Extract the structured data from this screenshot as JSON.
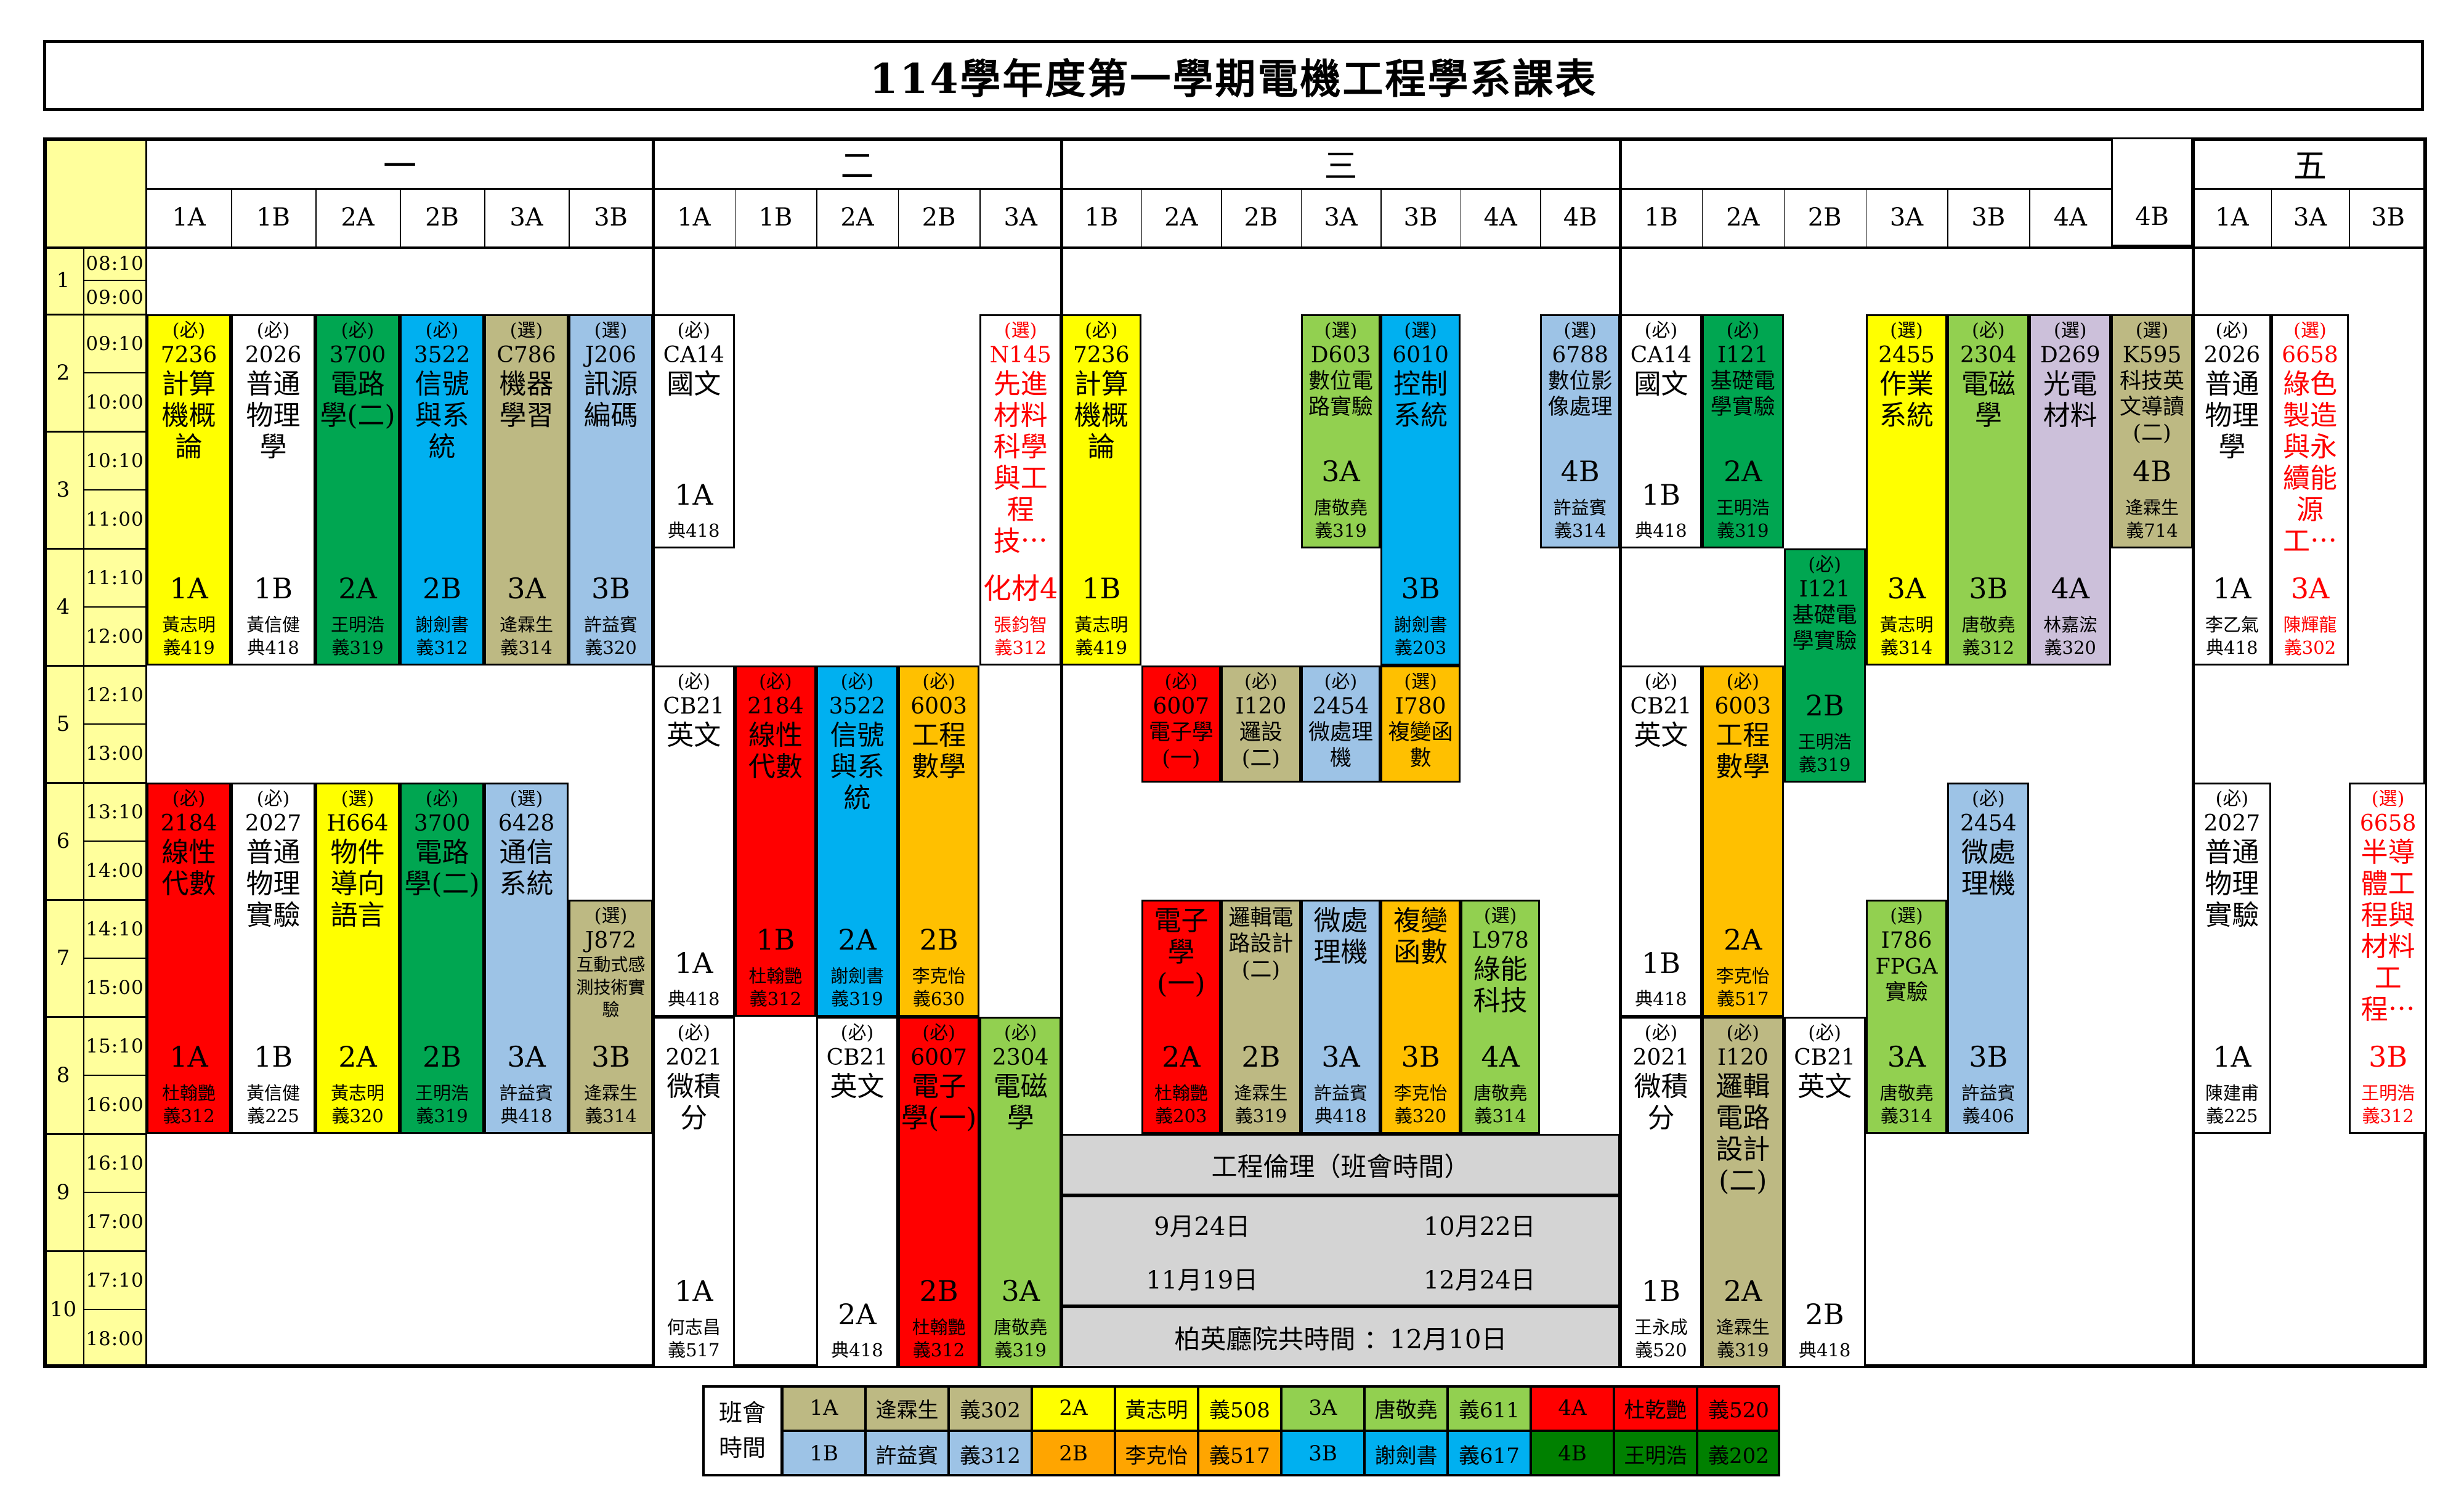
{
  "title": "114學年度第一學期電機工程學系課表",
  "palette": {
    "yellow": "#FFFF00",
    "white": "#FFFFFF",
    "green": "#00A651",
    "cyan": "#00B0F0",
    "tan": "#BDB983",
    "lightblue": "#9DC3E6",
    "red": "#FF0000",
    "lightgreen": "#92D050",
    "orange": "#FFC000",
    "orange2": "#FFA500",
    "lavender": "#CCC0DA",
    "gray": "#D4D4D4",
    "darkgreen": "#008000",
    "timecol": "#FFFF9C",
    "redtext": "#FF0000"
  },
  "days": [
    {
      "label": "一",
      "cols": [
        "1A",
        "1B",
        "2A",
        "2B",
        "3A",
        "3B"
      ]
    },
    {
      "label": "二",
      "cols": [
        "1A",
        "1B",
        "2A",
        "2B",
        "3A"
      ]
    },
    {
      "label": "三",
      "cols": [
        "1B",
        "2A",
        "2B",
        "3A",
        "3B",
        "4A",
        "4B"
      ]
    },
    {
      "label": "",
      "cols": [
        "1B",
        "2A",
        "2B",
        "3A",
        "3B",
        "4A",
        "4B"
      ],
      "merged_last": true
    },
    {
      "label": "五",
      "cols": [
        "1A",
        "3A",
        "3B"
      ]
    }
  ],
  "periods": [
    {
      "num": "1",
      "start": "08:10",
      "end": "09:00"
    },
    {
      "num": "2",
      "start": "09:10",
      "end": "10:00"
    },
    {
      "num": "3",
      "start": "10:10",
      "end": "11:00"
    },
    {
      "num": "4",
      "start": "11:10",
      "end": "12:00"
    },
    {
      "num": "5",
      "start": "12:10",
      "end": "13:00"
    },
    {
      "num": "6",
      "start": "13:10",
      "end": "14:00"
    },
    {
      "num": "7",
      "start": "14:10",
      "end": "15:00"
    },
    {
      "num": "8",
      "start": "15:10",
      "end": "16:00"
    },
    {
      "num": "9",
      "start": "16:10",
      "end": "17:00"
    },
    {
      "num": "10",
      "start": "17:10",
      "end": "18:00"
    }
  ],
  "courses": [
    {
      "d": 0,
      "c": 0,
      "p": [
        2,
        4
      ],
      "bg": "yellow",
      "meta": "(必)",
      "code": "7236",
      "name": "計算機概論",
      "size": "lg",
      "cls": "1A",
      "teacher": "黃志明",
      "room": "義419"
    },
    {
      "d": 0,
      "c": 1,
      "p": [
        2,
        4
      ],
      "bg": "white",
      "meta": "(必)",
      "code": "2026",
      "name": "普通物理學",
      "size": "lg",
      "cls": "1B",
      "teacher": "黃信健",
      "room": "典418"
    },
    {
      "d": 0,
      "c": 2,
      "p": [
        2,
        4
      ],
      "bg": "green",
      "meta": "(必)",
      "code": "3700",
      "name": "電路學(二)",
      "size": "lg",
      "cls": "2A",
      "teacher": "王明浩",
      "room": "義319"
    },
    {
      "d": 0,
      "c": 3,
      "p": [
        2,
        4
      ],
      "bg": "cyan",
      "meta": "(必)",
      "code": "3522",
      "name": "信號與系統",
      "size": "lg",
      "cls": "2B",
      "teacher": "謝劍書",
      "room": "義312"
    },
    {
      "d": 0,
      "c": 4,
      "p": [
        2,
        4
      ],
      "bg": "tan",
      "meta": "(選)",
      "code": "C786",
      "name": "機器學習",
      "size": "lg",
      "cls": "3A",
      "teacher": "逄霖生",
      "room": "義314"
    },
    {
      "d": 0,
      "c": 5,
      "p": [
        2,
        4
      ],
      "bg": "lightblue",
      "meta": "(選)",
      "code": "J206",
      "name": "訊源編碼",
      "size": "lg",
      "cls": "3B",
      "teacher": "許益賓",
      "room": "義320"
    },
    {
      "d": 0,
      "c": 0,
      "p": [
        6,
        8
      ],
      "bg": "red",
      "meta": "(必)",
      "code": "2184",
      "name": "線性代數",
      "size": "lg",
      "cls": "1A",
      "teacher": "杜翰艷",
      "room": "義312"
    },
    {
      "d": 0,
      "c": 1,
      "p": [
        6,
        8
      ],
      "bg": "white",
      "meta": "(必)",
      "code": "2027",
      "name": "普通物理實驗",
      "size": "lg",
      "cls": "1B",
      "teacher": "黃信健",
      "room": "義225"
    },
    {
      "d": 0,
      "c": 2,
      "p": [
        6,
        8
      ],
      "bg": "yellow",
      "meta": "(選)",
      "code": "H664",
      "name": "物件導向語言",
      "size": "lg",
      "cls": "2A",
      "teacher": "黃志明",
      "room": "義320"
    },
    {
      "d": 0,
      "c": 3,
      "p": [
        6,
        8
      ],
      "bg": "green",
      "meta": "(必)",
      "code": "3700",
      "name": "電路學(二)",
      "size": "lg",
      "cls": "2B",
      "teacher": "王明浩",
      "room": "義319"
    },
    {
      "d": 0,
      "c": 4,
      "p": [
        6,
        8
      ],
      "bg": "lightblue",
      "meta": "(選)",
      "code": "6428",
      "name": "通信系統",
      "size": "lg",
      "cls": "3A",
      "teacher": "許益賓",
      "room": "典418"
    },
    {
      "d": 0,
      "c": 5,
      "p": [
        7,
        8
      ],
      "bg": "tan",
      "meta": "(選)",
      "code": "J872",
      "name": "互動式感測技術實驗",
      "size": "xs",
      "cls": "3B",
      "teacher": "逄霖生",
      "room": "義314"
    },
    {
      "d": 1,
      "c": 0,
      "p": [
        2,
        3
      ],
      "bg": "white",
      "meta": "(必)",
      "code": "CA14",
      "name": "國文",
      "size": "lg",
      "cls": "1A",
      "room": "典418"
    },
    {
      "d": 1,
      "c": 4,
      "p": [
        2,
        4
      ],
      "bg": "white",
      "red": true,
      "meta": "(選)",
      "code": "N145",
      "name": "先進材料科學與工程技⋯",
      "size": "lg",
      "cls": "化材4",
      "teacher": "張鈞智",
      "room": "義312"
    },
    {
      "d": 1,
      "c": 0,
      "p": [
        5,
        7
      ],
      "bg": "white",
      "meta": "(必)",
      "code": "CB21",
      "name": "英文",
      "size": "lg",
      "cls": "1A",
      "room": "典418"
    },
    {
      "d": 1,
      "c": 1,
      "p": [
        5,
        7
      ],
      "bg": "red",
      "meta": "(必)",
      "code": "2184",
      "name": "線性代數",
      "size": "lg",
      "cls": "1B",
      "teacher": "杜翰艷",
      "room": "義312"
    },
    {
      "d": 1,
      "c": 2,
      "p": [
        5,
        7
      ],
      "bg": "cyan",
      "meta": "(必)",
      "code": "3522",
      "name": "信號與系統",
      "size": "lg",
      "cls": "2A",
      "teacher": "謝劍書",
      "room": "義319"
    },
    {
      "d": 1,
      "c": 3,
      "p": [
        5,
        7
      ],
      "bg": "orange",
      "meta": "(必)",
      "code": "6003",
      "name": "工程數學",
      "size": "lg",
      "cls": "2B",
      "teacher": "李克怡",
      "room": "義630"
    },
    {
      "d": 1,
      "c": 0,
      "p": [
        8,
        10
      ],
      "bg": "white",
      "meta": "(必)",
      "code": "2021",
      "name": "微積分",
      "size": "lg",
      "cls": "1A",
      "teacher": "何志昌",
      "room": "義517"
    },
    {
      "d": 1,
      "c": 2,
      "p": [
        8,
        10
      ],
      "bg": "white",
      "meta": "(必)",
      "code": "CB21",
      "name": "英文",
      "size": "lg",
      "cls": "2A",
      "room": "典418"
    },
    {
      "d": 1,
      "c": 3,
      "p": [
        8,
        10
      ],
      "bg": "red",
      "meta": "(必)",
      "code": "6007",
      "name": "電子學(一)",
      "size": "lg",
      "cls": "2B",
      "teacher": "杜翰艷",
      "room": "義312"
    },
    {
      "d": 1,
      "c": 4,
      "p": [
        8,
        10
      ],
      "bg": "lightgreen",
      "meta": "(必)",
      "code": "2304",
      "name": "電磁學",
      "size": "lg",
      "cls": "3A",
      "teacher": "唐敬堯",
      "room": "義319"
    },
    {
      "d": 2,
      "c": 0,
      "p": [
        2,
        4
      ],
      "bg": "yellow",
      "meta": "(必)",
      "code": "7236",
      "name": "計算機概論",
      "size": "lg",
      "cls": "1B",
      "teacher": "黃志明",
      "room": "義419"
    },
    {
      "d": 2,
      "c": 3,
      "p": [
        2,
        3
      ],
      "bg": "lightgreen",
      "meta": "(選)",
      "code": "D603",
      "name": "數位電路實驗",
      "size": "md",
      "cls": "3A",
      "teacher": "唐敬堯",
      "room": "義319"
    },
    {
      "d": 2,
      "c": 4,
      "p": [
        2,
        4
      ],
      "bg": "cyan",
      "meta": "(選)",
      "code": "6010",
      "name": "控制系統",
      "size": "lg",
      "cls": "3B",
      "teacher": "謝劍書",
      "room": "義203"
    },
    {
      "d": 2,
      "c": 6,
      "p": [
        2,
        3
      ],
      "bg": "lightblue",
      "meta": "(選)",
      "code": "6788",
      "name": "數位影像處理",
      "size": "md",
      "cls": "4B",
      "teacher": "許益賓",
      "room": "義314"
    },
    {
      "d": 2,
      "c": 1,
      "p": [
        5,
        5
      ],
      "bg": "red",
      "meta": "(必)",
      "code": "6007",
      "name": "電子學(一)",
      "size": "md"
    },
    {
      "d": 2,
      "c": 2,
      "p": [
        5,
        5
      ],
      "bg": "tan",
      "meta": "(必)",
      "code": "I120",
      "name": "邏設(二)",
      "size": "md"
    },
    {
      "d": 2,
      "c": 3,
      "p": [
        5,
        5
      ],
      "bg": "lightblue",
      "meta": "(必)",
      "code": "2454",
      "name": "微處理機",
      "size": "md"
    },
    {
      "d": 2,
      "c": 4,
      "p": [
        5,
        5
      ],
      "bg": "orange",
      "meta": "(選)",
      "code": "I780",
      "name": "複變函數",
      "size": "md"
    },
    {
      "d": 2,
      "c": 1,
      "p": [
        7,
        8
      ],
      "bg": "red",
      "name": "電子學(一)",
      "size": "lg",
      "cls": "2A",
      "teacher": "杜翰艷",
      "room": "義203"
    },
    {
      "d": 2,
      "c": 2,
      "p": [
        7,
        8
      ],
      "bg": "tan",
      "name": "邏輯電路設計(二)",
      "size": "md",
      "cls": "2B",
      "teacher": "逄霖生",
      "room": "義319"
    },
    {
      "d": 2,
      "c": 3,
      "p": [
        7,
        8
      ],
      "bg": "lightblue",
      "name": "微處理機",
      "size": "lg",
      "cls": "3A",
      "teacher": "許益賓",
      "room": "典418"
    },
    {
      "d": 2,
      "c": 4,
      "p": [
        7,
        8
      ],
      "bg": "orange",
      "name": "複變函數",
      "size": "lg",
      "cls": "3B",
      "teacher": "李克怡",
      "room": "義320"
    },
    {
      "d": 2,
      "c": 5,
      "p": [
        7,
        8
      ],
      "bg": "lightgreen",
      "meta": "(選)",
      "code": "L978",
      "name": "綠能科技",
      "size": "lg",
      "cls": "4A",
      "teacher": "唐敬堯",
      "room": "義314"
    },
    {
      "d": 3,
      "c": 0,
      "p": [
        2,
        3
      ],
      "bg": "white",
      "meta": "(必)",
      "code": "CA14",
      "name": "國文",
      "size": "lg",
      "cls": "1B",
      "room": "典418"
    },
    {
      "d": 3,
      "c": 1,
      "p": [
        2,
        3
      ],
      "bg": "green",
      "meta": "(必)",
      "code": "I121",
      "name": "基礎電學實驗",
      "size": "md",
      "cls": "2A",
      "teacher": "王明浩",
      "room": "義319"
    },
    {
      "d": 3,
      "c": 3,
      "p": [
        2,
        4
      ],
      "bg": "yellow",
      "meta": "(選)",
      "code": "2455",
      "name": "作業系統",
      "size": "lg",
      "cls": "3A",
      "teacher": "黃志明",
      "room": "義314"
    },
    {
      "d": 3,
      "c": 4,
      "p": [
        2,
        4
      ],
      "bg": "lightgreen",
      "meta": "(必)",
      "code": "2304",
      "name": "電磁學",
      "size": "lg",
      "cls": "3B",
      "teacher": "唐敬堯",
      "room": "義312"
    },
    {
      "d": 3,
      "c": 5,
      "p": [
        2,
        4
      ],
      "bg": "lavender",
      "meta": "(選)",
      "code": "D269",
      "name": "光電材料",
      "size": "lg",
      "cls": "4A",
      "teacher": "林嘉浤",
      "room": "義320"
    },
    {
      "d": 3,
      "c": 6,
      "p": [
        2,
        3
      ],
      "bg": "tan",
      "meta": "(選)",
      "code": "K595",
      "name": "科技英文導讀(二)",
      "size": "md",
      "cls": "4B",
      "teacher": "逄霖生",
      "room": "義714"
    },
    {
      "d": 3,
      "c": 2,
      "p": [
        4,
        5
      ],
      "bg": "green",
      "meta": "(必)",
      "code": "I121",
      "name": "基礎電學實驗",
      "size": "md",
      "cls": "2B",
      "teacher": "王明浩",
      "room": "義319"
    },
    {
      "d": 3,
      "c": 0,
      "p": [
        5,
        7
      ],
      "bg": "white",
      "meta": "(必)",
      "code": "CB21",
      "name": "英文",
      "size": "lg",
      "cls": "1B",
      "room": "典418"
    },
    {
      "d": 3,
      "c": 1,
      "p": [
        5,
        7
      ],
      "bg": "orange",
      "meta": "(必)",
      "code": "6003",
      "name": "工程數學",
      "size": "lg",
      "cls": "2A",
      "teacher": "李克怡",
      "room": "義517"
    },
    {
      "d": 3,
      "c": 4,
      "p": [
        6,
        8
      ],
      "bg": "lightblue",
      "meta": "(必)",
      "code": "2454",
      "name": "微處理機",
      "size": "lg",
      "cls": "3B",
      "teacher": "許益賓",
      "room": "義406"
    },
    {
      "d": 3,
      "c": 3,
      "p": [
        7,
        8
      ],
      "bg": "lightgreen",
      "meta": "(選)",
      "code": "I786",
      "name": "FPGA實驗",
      "size": "md",
      "cls": "3A",
      "teacher": "唐敬堯",
      "room": "義314"
    },
    {
      "d": 3,
      "c": 0,
      "p": [
        8,
        10
      ],
      "bg": "white",
      "meta": "(必)",
      "code": "2021",
      "name": "微積分",
      "size": "lg",
      "cls": "1B",
      "teacher": "王永成",
      "room": "義520"
    },
    {
      "d": 3,
      "c": 1,
      "p": [
        8,
        10
      ],
      "bg": "tan",
      "meta": "(必)",
      "code": "I120",
      "name": "邏輯電路設計(二)",
      "size": "lg",
      "cls": "2A",
      "teacher": "逄霖生",
      "room": "義319"
    },
    {
      "d": 3,
      "c": 2,
      "p": [
        8,
        10
      ],
      "bg": "white",
      "meta": "(必)",
      "code": "CB21",
      "name": "英文",
      "size": "lg",
      "cls": "2B",
      "room": "典418"
    },
    {
      "d": 4,
      "c": 0,
      "p": [
        2,
        4
      ],
      "bg": "white",
      "meta": "(必)",
      "code": "2026",
      "name": "普通物理學",
      "size": "lg",
      "cls": "1A",
      "teacher": "李乙氣",
      "room": "典418"
    },
    {
      "d": 4,
      "c": 1,
      "p": [
        2,
        4
      ],
      "bg": "white",
      "red": true,
      "meta": "(選)",
      "code": "6658",
      "name": "綠色製造與永續能源工⋯",
      "size": "lg",
      "cls": "3A",
      "teacher": "陳輝龍",
      "room": "義302"
    },
    {
      "d": 4,
      "c": 0,
      "p": [
        6,
        8
      ],
      "bg": "white",
      "meta": "(必)",
      "code": "2027",
      "name": "普通物理實驗",
      "size": "lg",
      "cls": "1A",
      "teacher": "陳建甫",
      "room": "義225"
    },
    {
      "d": 4,
      "c": 2,
      "p": [
        6,
        8
      ],
      "bg": "white",
      "red": true,
      "meta": "(選)",
      "code": "6658",
      "name": "半導體工程與材料工程⋯",
      "size": "lg",
      "cls": "3B",
      "teacher": "王明浩",
      "room": "義312"
    }
  ],
  "ethics": {
    "title": "工程倫理（班會時間）",
    "dates": [
      "9月24日",
      "10月22日",
      "11月19日",
      "12月24日"
    ],
    "footer": "柏英廳院共時間 ：12月10日"
  },
  "legend": {
    "label_line1": "班會",
    "label_line2": "時間",
    "rows": [
      [
        {
          "cls": "1A",
          "teacher": "逄霖生",
          "room": "義302",
          "color": "tan"
        },
        {
          "cls": "2A",
          "teacher": "黃志明",
          "room": "義508",
          "color": "yellow"
        },
        {
          "cls": "3A",
          "teacher": "唐敬堯",
          "room": "義611",
          "color": "lightgreen"
        },
        {
          "cls": "4A",
          "teacher": "杜乾艷",
          "room": "義520",
          "color": "red"
        }
      ],
      [
        {
          "cls": "1B",
          "teacher": "許益賓",
          "room": "義312",
          "color": "lightblue"
        },
        {
          "cls": "2B",
          "teacher": "李克怡",
          "room": "義517",
          "color": "orange2"
        },
        {
          "cls": "3B",
          "teacher": "謝劍書",
          "room": "義617",
          "color": "cyan"
        },
        {
          "cls": "4B",
          "teacher": "王明浩",
          "room": "義202",
          "color": "darkgreen"
        }
      ]
    ]
  }
}
